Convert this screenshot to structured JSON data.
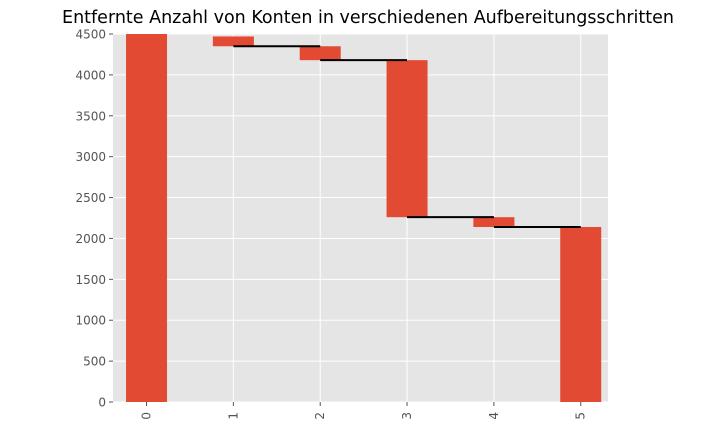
{
  "chart_data": {
    "type": "bar",
    "title": "Entfernte Anzahl von Konten in verschiedenen Aufbereitungsschritten",
    "xlabel": "",
    "ylabel": "",
    "categories": [
      "0",
      "1",
      "2",
      "3",
      "4",
      "5"
    ],
    "bars": [
      {
        "category": "0",
        "bottom": 0,
        "top": 4500
      },
      {
        "category": "1",
        "bottom": 4350,
        "top": 4470
      },
      {
        "category": "2",
        "bottom": 4180,
        "top": 4350
      },
      {
        "category": "3",
        "bottom": 2260,
        "top": 4180
      },
      {
        "category": "4",
        "bottom": 2140,
        "top": 2260
      },
      {
        "category": "5",
        "bottom": 0,
        "top": 2140
      }
    ],
    "connectors": [
      {
        "from": "1",
        "to": "2",
        "y": 4350
      },
      {
        "from": "2",
        "to": "3",
        "y": 4180
      },
      {
        "from": "3",
        "to": "4",
        "y": 2260
      },
      {
        "from": "4",
        "to": "5",
        "y": 2140
      }
    ],
    "ylim": [
      0,
      4500
    ],
    "yticks": [
      0,
      500,
      1000,
      1500,
      2000,
      2500,
      3000,
      3500,
      4000,
      4500
    ],
    "grid": true,
    "colors": {
      "bar": "#e24a33",
      "background": "#e5e5e5",
      "grid": "#ffffff",
      "connector": "#000000"
    }
  }
}
